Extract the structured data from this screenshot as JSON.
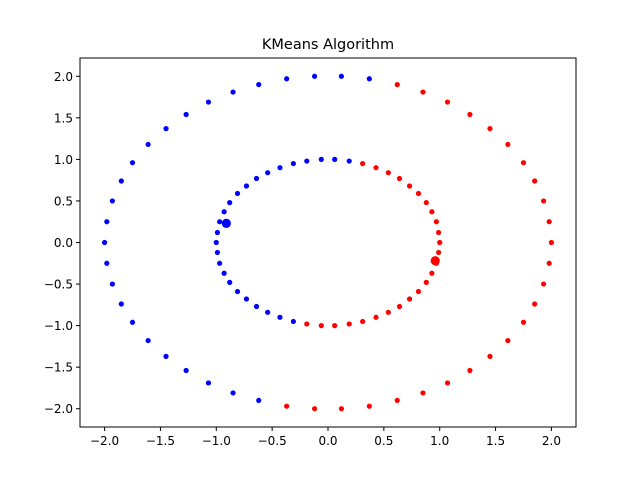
{
  "chart_data": {
    "type": "scatter",
    "title": "KMeans Algorithm",
    "xlabel": "",
    "ylabel": "",
    "xlim": [
      -2.22,
      2.22
    ],
    "ylim": [
      -2.22,
      2.22
    ],
    "grid": false,
    "legend": "none",
    "x_ticks": [
      -2.0,
      -1.5,
      -1.0,
      -0.5,
      0.0,
      0.5,
      1.0,
      1.5,
      2.0
    ],
    "x_tick_labels": [
      "−2.0",
      "−1.5",
      "−1.0",
      "−0.5",
      "0.0",
      "0.5",
      "1.0",
      "1.5",
      "2.0"
    ],
    "y_ticks": [
      -2.0,
      -1.5,
      -1.0,
      -0.5,
      0.0,
      0.5,
      1.0,
      1.5,
      2.0
    ],
    "y_tick_labels": [
      "−2.0",
      "−1.5",
      "−1.0",
      "−0.5",
      "0.0",
      "0.5",
      "1.0",
      "1.5",
      "2.0"
    ],
    "series": [
      {
        "color": "#0000ff",
        "points": [
          [
            0.12,
            2.0
          ],
          [
            -0.12,
            2.0
          ],
          [
            -0.37,
            1.97
          ],
          [
            -0.62,
            1.9
          ],
          [
            -0.85,
            1.81
          ],
          [
            -1.07,
            1.69
          ],
          [
            -1.27,
            1.54
          ],
          [
            -1.45,
            1.37
          ],
          [
            -1.61,
            1.18
          ],
          [
            -1.75,
            0.96
          ],
          [
            -1.85,
            0.74
          ],
          [
            -1.93,
            0.5
          ],
          [
            -1.98,
            0.25
          ],
          [
            -2.0,
            0.0
          ],
          [
            -1.98,
            -0.25
          ],
          [
            -1.93,
            -0.5
          ],
          [
            -1.85,
            -0.74
          ],
          [
            -1.75,
            -0.96
          ],
          [
            -1.61,
            -1.18
          ],
          [
            -1.45,
            -1.37
          ],
          [
            -1.27,
            -1.54
          ],
          [
            -1.07,
            -1.69
          ],
          [
            -0.85,
            -1.81
          ],
          [
            -0.62,
            -1.9
          ],
          [
            0.37,
            1.97
          ],
          [
            0.19,
            0.98
          ],
          [
            0.06,
            1.0
          ],
          [
            -0.06,
            1.0
          ],
          [
            -0.19,
            0.98
          ],
          [
            -0.31,
            0.95
          ],
          [
            -0.43,
            0.9
          ],
          [
            -0.54,
            0.84
          ],
          [
            -0.64,
            0.77
          ],
          [
            -0.73,
            0.68
          ],
          [
            -0.81,
            0.59
          ],
          [
            -0.88,
            0.48
          ],
          [
            -0.93,
            0.37
          ],
          [
            -0.97,
            0.25
          ],
          [
            -0.99,
            0.12
          ],
          [
            -1.0,
            0.0
          ],
          [
            -0.99,
            -0.12
          ],
          [
            -0.97,
            -0.25
          ],
          [
            -0.93,
            -0.37
          ],
          [
            -0.88,
            -0.48
          ],
          [
            -0.81,
            -0.59
          ],
          [
            -0.73,
            -0.68
          ],
          [
            -0.64,
            -0.77
          ],
          [
            -0.54,
            -0.84
          ],
          [
            -0.43,
            -0.9
          ],
          [
            -0.31,
            -0.95
          ]
        ]
      },
      {
        "color": "#ff0000",
        "points": [
          [
            0.62,
            1.9
          ],
          [
            0.85,
            1.81
          ],
          [
            1.07,
            1.69
          ],
          [
            1.27,
            1.54
          ],
          [
            1.45,
            1.37
          ],
          [
            1.61,
            1.18
          ],
          [
            1.75,
            0.96
          ],
          [
            1.85,
            0.74
          ],
          [
            1.93,
            0.5
          ],
          [
            1.98,
            0.25
          ],
          [
            2.0,
            0.0
          ],
          [
            1.98,
            -0.25
          ],
          [
            1.93,
            -0.5
          ],
          [
            1.85,
            -0.74
          ],
          [
            1.75,
            -0.96
          ],
          [
            1.61,
            -1.18
          ],
          [
            1.45,
            -1.37
          ],
          [
            1.27,
            -1.54
          ],
          [
            1.07,
            -1.69
          ],
          [
            0.85,
            -1.81
          ],
          [
            0.62,
            -1.9
          ],
          [
            0.37,
            -1.97
          ],
          [
            0.12,
            -2.0
          ],
          [
            -0.12,
            -2.0
          ],
          [
            -0.37,
            -1.97
          ],
          [
            0.31,
            0.95
          ],
          [
            0.43,
            0.9
          ],
          [
            0.54,
            0.84
          ],
          [
            0.64,
            0.77
          ],
          [
            0.73,
            0.68
          ],
          [
            0.81,
            0.59
          ],
          [
            0.88,
            0.48
          ],
          [
            0.93,
            0.37
          ],
          [
            0.97,
            0.25
          ],
          [
            0.99,
            0.12
          ],
          [
            1.0,
            0.0
          ],
          [
            0.99,
            -0.12
          ],
          [
            0.97,
            -0.25
          ],
          [
            0.93,
            -0.37
          ],
          [
            0.88,
            -0.48
          ],
          [
            0.81,
            -0.59
          ],
          [
            0.73,
            -0.68
          ],
          [
            0.64,
            -0.77
          ],
          [
            0.54,
            -0.84
          ],
          [
            0.43,
            -0.9
          ],
          [
            0.31,
            -0.95
          ],
          [
            0.19,
            -0.98
          ],
          [
            0.06,
            -1.0
          ],
          [
            -0.06,
            -1.0
          ],
          [
            -0.19,
            -0.98
          ]
        ]
      }
    ],
    "centroids": [
      {
        "color": "#0000ff",
        "x": -0.91,
        "y": 0.23
      },
      {
        "color": "#ff0000",
        "x": 0.96,
        "y": -0.22
      }
    ]
  }
}
